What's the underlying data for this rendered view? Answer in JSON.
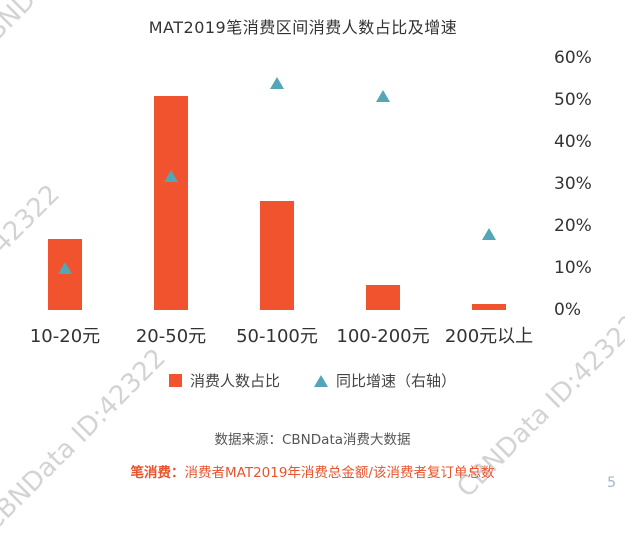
{
  "title": "MAT2019笔消费区间消费人数占比及增速",
  "chart_data": {
    "type": "bar",
    "title": "MAT2019笔消费区间消费人数占比及增速",
    "categories": [
      "10-20元",
      "20-50元",
      "50-100元",
      "100-200元",
      "200元以上"
    ],
    "series": [
      {
        "name": "消费人数占比",
        "type": "bar",
        "axis": "right-scale",
        "values": [
          17,
          51,
          26,
          6,
          1.5
        ]
      },
      {
        "name": "同比增速（右轴）",
        "type": "scatter",
        "axis": "right",
        "values": [
          10,
          32,
          54,
          51,
          18
        ]
      }
    ],
    "right_axis": {
      "min": 0,
      "max": 60,
      "ticks": [
        "60%",
        "50%",
        "40%",
        "30%",
        "20%",
        "10%",
        "0%"
      ],
      "unit": "%"
    },
    "grid": false,
    "legend_position": "bottom"
  },
  "legend": {
    "bars_label": "消费人数占比",
    "markers_label": "同比增速（右轴）"
  },
  "source": "数据来源：CBNData消费大数据",
  "footnote": {
    "lead": "笔消费：",
    "text": "消费者MAT2019年消费总金额/该消费者复订单总数"
  },
  "watermark": "CBNData ID:42322",
  "page_number": "5",
  "colors": {
    "bar": "#F0532D",
    "marker": "#53A6B6",
    "footnote": "#E8542E"
  }
}
